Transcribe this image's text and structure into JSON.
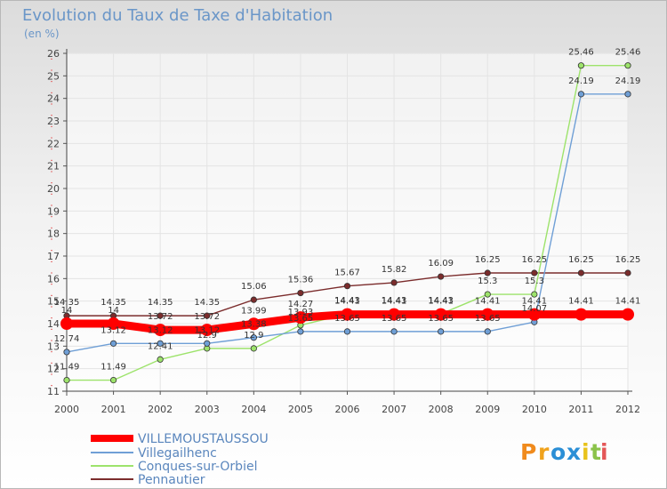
{
  "title": "Evolution du Taux de Taxe d'Habitation",
  "unit": "(en %)",
  "brand": [
    "P",
    "r",
    "o",
    "x",
    "i",
    "t",
    "i"
  ],
  "chart_data": {
    "type": "line",
    "title": "Evolution du Taux de Taxe d'Habitation",
    "ylabel": "(en %)",
    "xlabel": "",
    "ylim": [
      11,
      26
    ],
    "yticks": [
      11,
      12,
      13,
      14,
      15,
      16,
      17,
      18,
      19,
      20,
      21,
      22,
      23,
      24,
      25,
      26
    ],
    "x": [
      2000,
      2001,
      2002,
      2003,
      2004,
      2005,
      2006,
      2007,
      2008,
      2009,
      2010,
      2011,
      2012
    ],
    "grid": true,
    "legend": "bottom-left",
    "series": [
      {
        "name": "VILLEMOUSTAUSSOU",
        "color": "#ff0000",
        "values": [
          14.0,
          14.0,
          13.72,
          13.72,
          13.99,
          14.27,
          14.41,
          14.41,
          14.41,
          14.41,
          14.41,
          14.41,
          14.41
        ],
        "labels": [
          "14",
          "14",
          "13.72",
          "13.72",
          "13.99",
          "14.27",
          "14.41",
          "14.41",
          "14.41",
          "14.41",
          "14.41",
          "14.41",
          "14.41"
        ]
      },
      {
        "name": "Villegailhenc",
        "color": "#6f9fd6",
        "values": [
          12.74,
          13.12,
          13.12,
          13.12,
          13.38,
          13.65,
          13.65,
          13.65,
          13.65,
          13.65,
          14.07,
          24.19,
          24.19
        ],
        "labels": [
          "12.74",
          "13.12",
          "13.12",
          "13.12",
          "13.38",
          "13.65",
          "13.65",
          "13.65",
          "13.65",
          "13.65",
          "14.07",
          "24.19",
          "24.19"
        ]
      },
      {
        "name": "Conques-sur-Orbiel",
        "color": "#9de36b",
        "values": [
          11.49,
          11.49,
          12.41,
          12.9,
          12.9,
          13.93,
          14.43,
          14.43,
          14.43,
          15.3,
          15.3,
          25.46,
          25.46
        ],
        "labels": [
          "11.49",
          "11.49",
          "12.41",
          "12.9",
          "12.9",
          "13.93",
          "14.43",
          "14.43",
          "14.43",
          "15.3",
          "15.3",
          "25.46",
          "25.46"
        ]
      },
      {
        "name": "Pennautier",
        "color": "#7b2c2c",
        "values": [
          14.35,
          14.35,
          14.35,
          14.35,
          15.06,
          15.36,
          15.67,
          15.82,
          16.09,
          16.25,
          16.25,
          16.25,
          16.25
        ],
        "labels": [
          "14.35",
          "14.35",
          "14.35",
          "14.35",
          "15.06",
          "15.36",
          "15.67",
          "15.82",
          "16.09",
          "16.25",
          "16.25",
          "16.25",
          "16.25"
        ]
      }
    ]
  }
}
